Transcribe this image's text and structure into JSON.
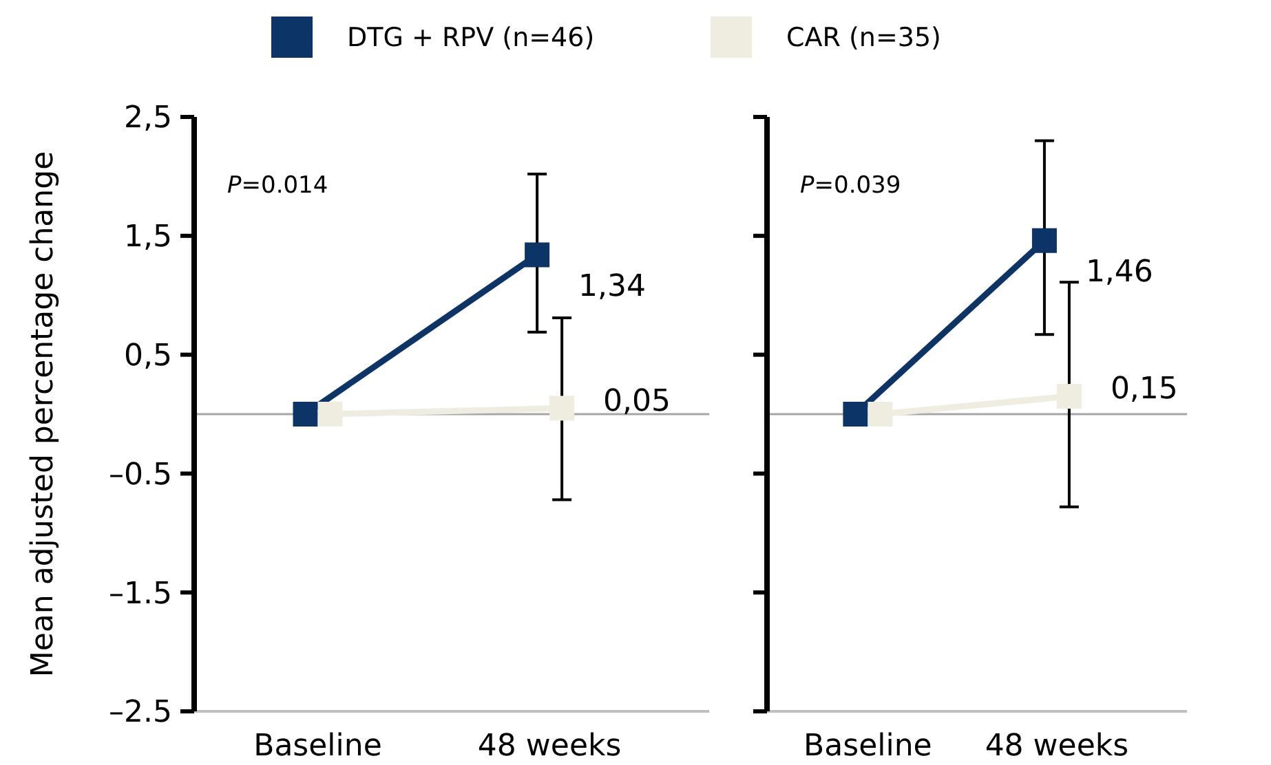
{
  "chart_data": [
    {
      "type": "line",
      "ylabel": "Mean adjusted percentage change",
      "categories": [
        "Baseline",
        "48 weeks"
      ],
      "ylim": [
        -2.5,
        2.5
      ],
      "yticks": [
        {
          "value": 2.5,
          "label": "2,5"
        },
        {
          "value": 1.5,
          "label": "1,5"
        },
        {
          "value": 0.5,
          "label": "0,5"
        },
        {
          "value": -0.5,
          "label": "–0.5"
        },
        {
          "value": -1.5,
          "label": "–1.5"
        },
        {
          "value": -2.5,
          "label": "–2.5"
        }
      ],
      "marker": "square",
      "legend": "top",
      "annotations": [
        "P=0.014"
      ],
      "ref_lines": [
        {
          "axis": "y",
          "value": 0,
          "color": "#a6a6a6"
        }
      ],
      "series": [
        {
          "name": "DTG + RPV (n=46)",
          "color": "#0d3466",
          "values": [
            0,
            1.34
          ],
          "errors": [
            null,
            [
              0.69,
              2.02
            ]
          ],
          "value_labels": [
            null,
            "1,34"
          ]
        },
        {
          "name": "CAR (n=35)",
          "color": "#efece0",
          "values": [
            0,
            0.05
          ],
          "errors": [
            null,
            [
              -0.72,
              0.81
            ]
          ],
          "value_labels": [
            null,
            "0,05"
          ]
        }
      ]
    },
    {
      "type": "line",
      "categories": [
        "Baseline",
        "48 weeks"
      ],
      "ylim": [
        -2.5,
        2.5
      ],
      "yticks": [
        {
          "value": 2.5,
          "label": null
        },
        {
          "value": 1.5,
          "label": null
        },
        {
          "value": 0.5,
          "label": null
        },
        {
          "value": -0.5,
          "label": null
        },
        {
          "value": -1.5,
          "label": null
        },
        {
          "value": -2.5,
          "label": null
        }
      ],
      "tick_labels": "x",
      "marker": "square",
      "annotations": [
        "P=0.039"
      ],
      "ref_lines": [
        {
          "axis": "y",
          "value": 0,
          "color": "#a6a6a6"
        }
      ],
      "series": [
        {
          "color": "#0d3466",
          "values": [
            0,
            1.46
          ],
          "errors": [
            null,
            [
              0.67,
              2.3
            ]
          ],
          "value_labels": [
            null,
            "1,46"
          ]
        },
        {
          "color": "#efece0",
          "values": [
            0,
            0.15
          ],
          "errors": [
            null,
            [
              -0.78,
              1.11
            ]
          ],
          "value_labels": [
            null,
            "0,15"
          ]
        }
      ]
    }
  ]
}
